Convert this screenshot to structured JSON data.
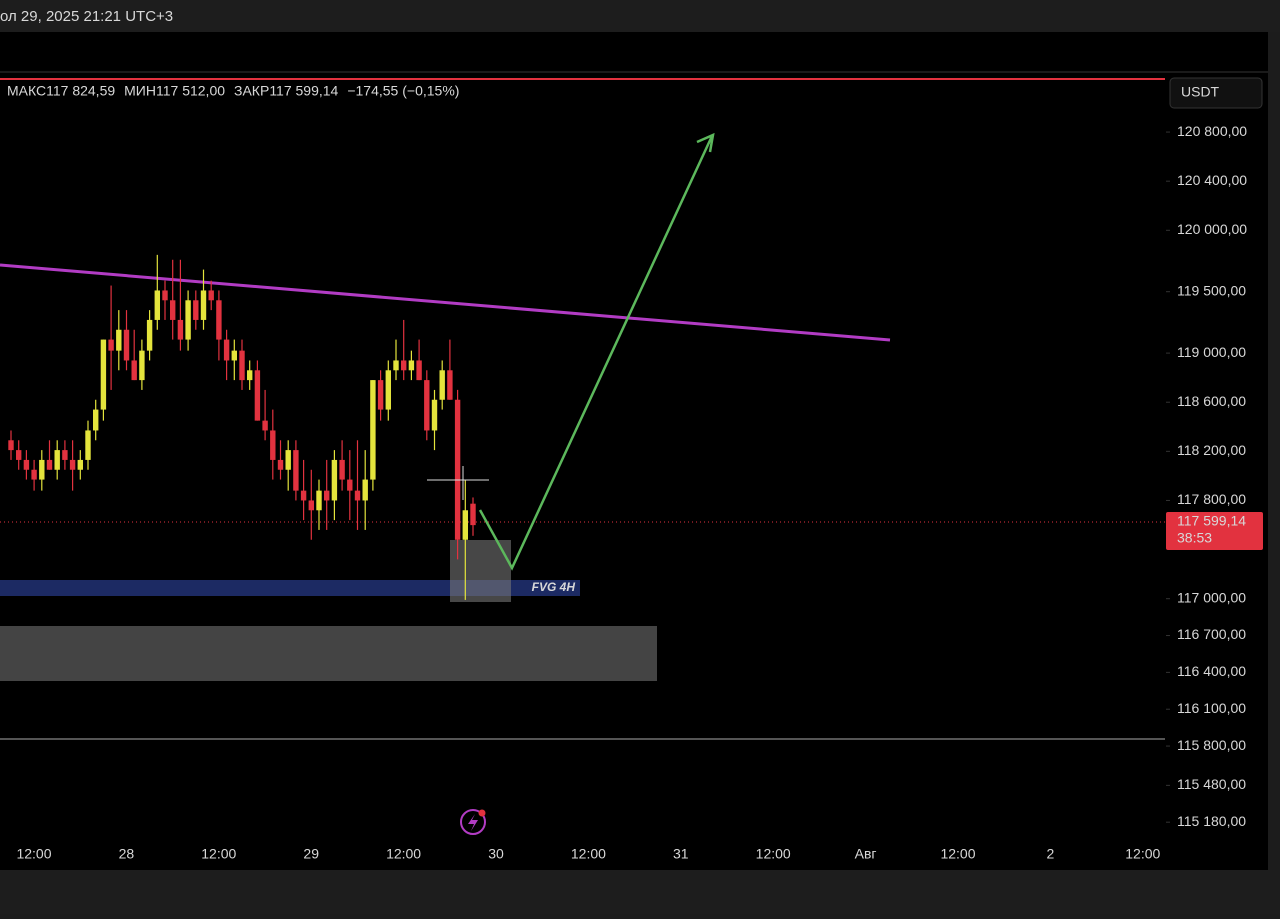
{
  "header_date": "ол 29, 2025 21:21 UTC+3",
  "ohlc_legend": [
    {
      "label": "МАКС",
      "value": "117 824,59"
    },
    {
      "label": "МИН",
      "value": "117 512,00"
    },
    {
      "label": "ЗАКР",
      "value": "117 599,14"
    }
  ],
  "change": "−174,55 (−0,15%)",
  "currency_button": "USDT",
  "annotation": "FVG 4H",
  "price_tag": "117 599,14",
  "countdown": "38:53",
  "chart_data": {
    "type": "candlestick",
    "categories": [
      null,
      null,
      null,
      null,
      null,
      null,
      null,
      null,
      null,
      null,
      null,
      null,
      null,
      null,
      null,
      null,
      null,
      null,
      null,
      null,
      null,
      null,
      null,
      null,
      null,
      null,
      null,
      null,
      null,
      null,
      null,
      null,
      null,
      null,
      null,
      null,
      null,
      null,
      null,
      null,
      null,
      null,
      null,
      null,
      null,
      null,
      null,
      null,
      null,
      null,
      null,
      null,
      null,
      null,
      null,
      null,
      null,
      null,
      null,
      null,
      null
    ],
    "open": [
      118290,
      118210,
      118130,
      118050,
      117970,
      118130,
      118050,
      118210,
      118130,
      118050,
      118130,
      118370,
      118540,
      119110,
      119020,
      119190,
      118940,
      118780,
      119020,
      119270,
      119510,
      119430,
      119270,
      119110,
      119430,
      119270,
      119510,
      119430,
      119110,
      118940,
      119020,
      118780,
      118860,
      118450,
      118370,
      118130,
      118050,
      118210,
      117880,
      117800,
      117720,
      117880,
      117800,
      118130,
      117970,
      117880,
      117800,
      117970,
      118780,
      118540,
      118860,
      118940,
      118860,
      118940,
      118780,
      118370,
      118620,
      118860,
      118620,
      117480,
      117773.69
    ],
    "high": [
      118370,
      118290,
      118210,
      118130,
      118210,
      118290,
      118290,
      118290,
      118290,
      118210,
      118450,
      118620,
      119110,
      119550,
      119350,
      119350,
      119190,
      119110,
      119350,
      119800,
      119590,
      119760,
      119760,
      119510,
      119510,
      119680,
      119590,
      119510,
      119190,
      119110,
      119110,
      118940,
      118940,
      118700,
      118540,
      118290,
      118290,
      118290,
      118130,
      118050,
      117970,
      118130,
      118210,
      118290,
      118210,
      118290,
      118210,
      118780,
      118860,
      118940,
      119110,
      119270,
      119020,
      119110,
      118860,
      118700,
      118940,
      119110,
      118700,
      117970,
      117824.59
    ],
    "low": [
      118130,
      118050,
      117970,
      117880,
      117880,
      118050,
      117970,
      118050,
      117880,
      117970,
      118050,
      118290,
      118450,
      118700,
      118860,
      118860,
      118780,
      118700,
      118940,
      119190,
      119270,
      119110,
      119020,
      119020,
      119190,
      119190,
      119350,
      118940,
      118780,
      118780,
      118700,
      118700,
      118450,
      118290,
      117970,
      117970,
      117880,
      117800,
      117640,
      117480,
      117560,
      117560,
      117640,
      117880,
      117640,
      117560,
      117560,
      117880,
      118450,
      118450,
      118780,
      118780,
      118780,
      118780,
      118290,
      118210,
      118540,
      118620,
      117320,
      116990,
      117512.0
    ],
    "close": [
      118210,
      118130,
      118050,
      117970,
      118130,
      118050,
      118210,
      118130,
      118050,
      118130,
      118370,
      118540,
      119110,
      119020,
      119190,
      118940,
      118780,
      119020,
      119270,
      119510,
      119430,
      119270,
      119110,
      119430,
      119270,
      119510,
      119430,
      119110,
      118940,
      119020,
      118780,
      118860,
      118450,
      118370,
      118130,
      118050,
      118210,
      117880,
      117800,
      117720,
      117880,
      117800,
      118130,
      117970,
      117880,
      117800,
      117970,
      118780,
      118540,
      118860,
      118940,
      118860,
      118940,
      118780,
      118370,
      118620,
      118860,
      118620,
      117480,
      117720,
      117599.14
    ],
    "up_color": "#e4e43c",
    "down_color": "#e2323f",
    "ylim": [
      115035,
      121289
    ],
    "yticks": [
      {
        "value": 120800,
        "label": "120 800,00"
      },
      {
        "value": 120400,
        "label": "120 400,00"
      },
      {
        "value": 120000,
        "label": "120 000,00"
      },
      {
        "value": 119500,
        "label": "119 500,00"
      },
      {
        "value": 119000,
        "label": "119 000,00"
      },
      {
        "value": 118600,
        "label": "118 600,00"
      },
      {
        "value": 118200,
        "label": "118 200,00"
      },
      {
        "value": 117800,
        "label": "117 800,00"
      },
      {
        "value": 117000,
        "label": "117 000,00"
      },
      {
        "value": 116700,
        "label": "116 700,00"
      },
      {
        "value": 116400,
        "label": "116 400,00"
      },
      {
        "value": 116100,
        "label": "116 100,00"
      },
      {
        "value": 115800,
        "label": "115 800,00"
      },
      {
        "value": 115480,
        "label": "115 480,00"
      },
      {
        "value": 115180,
        "label": "115 180,00"
      }
    ],
    "x_axis_labels": [
      "12:00",
      "28",
      "12:00",
      "29",
      "12:00",
      "30",
      "12:00",
      "31",
      "12:00",
      "Авг",
      "12:00",
      "2",
      "12:00"
    ]
  }
}
